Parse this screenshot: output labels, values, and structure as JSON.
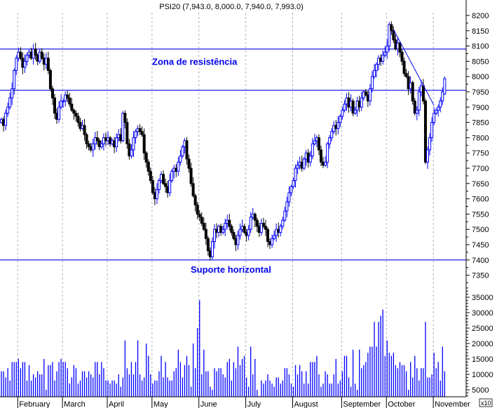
{
  "chart_data": {
    "type": "candlestick",
    "title": "PSI20 (7,943.0, 8,000.0, 7,940.0, 7,993.0)",
    "last_bar": {
      "open": 7943.0,
      "high": 8000.0,
      "low": 7940.0,
      "close": 7993.0
    },
    "price_axis": {
      "ylim": [
        7350,
        8200
      ],
      "ticks": [
        7350,
        7400,
        7450,
        7500,
        7550,
        7600,
        7650,
        7700,
        7750,
        7800,
        7850,
        7900,
        7950,
        8000,
        8050,
        8100,
        8150,
        8200
      ]
    },
    "volume_axis": {
      "ylim": [
        0,
        38000
      ],
      "ticks": [
        5000,
        10000,
        15000,
        20000,
        25000,
        30000,
        35000
      ],
      "multiplier_label": "x10"
    },
    "grid": {
      "vertical_dashed_at_month_starts": true
    },
    "colors": {
      "up": "#0000ff",
      "down": "#000000",
      "lines": "#0000ee",
      "volume": "#0000ff"
    },
    "horizontal_lines": [
      8090,
      7955,
      7400
    ],
    "trend_line": {
      "from": {
        "month": "October",
        "day_index": 3,
        "value": 8154
      },
      "to": {
        "month": "November",
        "day_index": 0,
        "value": 7906
      }
    },
    "annotations": [
      {
        "text": "Zona de resistência",
        "value": 8050
      },
      {
        "text": "Suporte horizontal",
        "value": 7370
      }
    ],
    "months": [
      {
        "label": "",
        "closes": [
          7860,
          7840,
          7880,
          7900,
          7930,
          7960,
          8020,
          8060
        ],
        "volumes": [
          11000,
          11000,
          9000,
          12000,
          8000,
          14000,
          14000,
          14000
        ]
      },
      {
        "label": "February",
        "closes": [
          8080,
          8060,
          8030,
          8050,
          8070,
          8080,
          8060,
          8090,
          8070,
          8050,
          8080,
          8060,
          8040,
          8060,
          8020,
          7960,
          7930,
          7880,
          7860,
          7900,
          7920
        ],
        "volumes": [
          15000,
          12000,
          14000,
          14000,
          8000,
          13000,
          8000,
          10000,
          9000,
          11000,
          10000,
          10000,
          15000,
          5000,
          13000,
          13000,
          14000,
          8000,
          11000,
          14000,
          15000
        ]
      },
      {
        "label": "March",
        "closes": [
          7920,
          7940,
          7930,
          7910,
          7890,
          7880,
          7870,
          7850,
          7830,
          7840,
          7810,
          7780,
          7770,
          7760,
          7780,
          7800,
          7790,
          7770,
          7780,
          7800,
          7790
        ],
        "volumes": [
          14000,
          14000,
          12000,
          7000,
          9000,
          13000,
          12000,
          7000,
          8000,
          11000,
          11000,
          9000,
          11000,
          10000,
          9000,
          14000,
          14000,
          10000,
          14000,
          12000,
          8000
        ]
      },
      {
        "label": "April",
        "closes": [
          7800,
          7780,
          7790,
          7770,
          7800,
          7810,
          7790,
          7880,
          7850,
          7780,
          7740,
          7760,
          7800,
          7820,
          7830,
          7820,
          7810,
          7750,
          7720,
          7690,
          7660
        ],
        "volumes": [
          8000,
          7000,
          8000,
          8000,
          7000,
          10000,
          6000,
          9000,
          21000,
          12000,
          10000,
          14000,
          10000,
          14000,
          21000,
          10000,
          8000,
          9000,
          20000,
          16000,
          10000
        ]
      },
      {
        "label": "May",
        "closes": [
          7620,
          7600,
          7630,
          7660,
          7680,
          7650,
          7640,
          7620,
          7660,
          7690,
          7700,
          7690,
          7720,
          7740,
          7770,
          7790,
          7730,
          7700,
          7650,
          7610,
          7580,
          7550
        ],
        "volumes": [
          7000,
          8000,
          8000,
          11000,
          16000,
          9000,
          14000,
          9000,
          8000,
          8000,
          11000,
          12000,
          18000,
          14000,
          9000,
          13000,
          16000,
          13000,
          6000,
          20000,
          12000,
          25000
        ]
      },
      {
        "label": "June",
        "closes": [
          7540,
          7520,
          7500,
          7470,
          7430,
          7410,
          7460,
          7500,
          7490,
          7510,
          7490,
          7500,
          7520,
          7530,
          7510,
          7490,
          7470,
          7450,
          7480,
          7500,
          7510,
          7490
        ],
        "volumes": [
          34000,
          10000,
          18000,
          11000,
          11000,
          6000,
          5000,
          12000,
          11000,
          12000,
          12000,
          10000,
          9000,
          14000,
          15000,
          8000,
          14000,
          12000,
          19000,
          13000,
          15000,
          16000
        ]
      },
      {
        "label": "July",
        "closes": [
          7480,
          7500,
          7540,
          7550,
          7530,
          7510,
          7490,
          7520,
          7510,
          7500,
          7460,
          7450,
          7470,
          7480,
          7500,
          7490,
          7510,
          7530,
          7560,
          7590,
          7620,
          7640
        ],
        "volumes": [
          9000,
          6000,
          19000,
          10000,
          15000,
          5000,
          3000,
          8000,
          7000,
          8000,
          10000,
          8000,
          7000,
          6000,
          9000,
          9000,
          7000,
          8000,
          12000,
          12000,
          10000,
          7000
        ]
      },
      {
        "label": "August",
        "closes": [
          7660,
          7700,
          7710,
          7720,
          7700,
          7730,
          7750,
          7720,
          7740,
          7780,
          7790,
          7800,
          7760,
          7720,
          7710,
          7720,
          7780,
          7800,
          7820,
          7840,
          7830,
          7850,
          7870
        ],
        "volumes": [
          6000,
          13000,
          10000,
          13000,
          11000,
          7000,
          11000,
          7000,
          14000,
          14000,
          14000,
          16000,
          10000,
          6000,
          7000,
          11000,
          10000,
          7000,
          7000,
          10000,
          15000,
          7000,
          8000
        ]
      },
      {
        "label": "September",
        "closes": [
          7890,
          7910,
          7930,
          7900,
          7920,
          7880,
          7890,
          7920,
          7900,
          7930,
          7950,
          7940,
          7920,
          7960,
          8000,
          8020,
          8040,
          8060,
          8050,
          8070,
          8080
        ],
        "volumes": [
          11000,
          16000,
          16000,
          9000,
          6000,
          18000,
          7000,
          5000,
          18000,
          12000,
          13000,
          14000,
          17000,
          19000,
          19000,
          27000,
          19000,
          27000,
          29000,
          31000,
          16000
        ]
      },
      {
        "label": "October",
        "closes": [
          8100,
          8170,
          8150,
          8120,
          8090,
          8110,
          8080,
          8050,
          8010,
          8000,
          7960,
          7980,
          7920,
          7880,
          7890,
          7950,
          7970,
          7920,
          7720,
          7760,
          7800,
          7850
        ],
        "volumes": [
          21000,
          17000,
          16000,
          17000,
          13000,
          12000,
          14000,
          13000,
          13000,
          11000,
          5000,
          14000,
          9000,
          16000,
          12000,
          8000,
          12000,
          12000,
          27000,
          9000,
          9000,
          10000
        ]
      },
      {
        "label": "November",
        "closes": [
          7880,
          7890,
          7900,
          7920,
          7950,
          7993
        ],
        "volumes": [
          17000,
          12000,
          14000,
          8000,
          19000,
          11000
        ]
      }
    ]
  }
}
